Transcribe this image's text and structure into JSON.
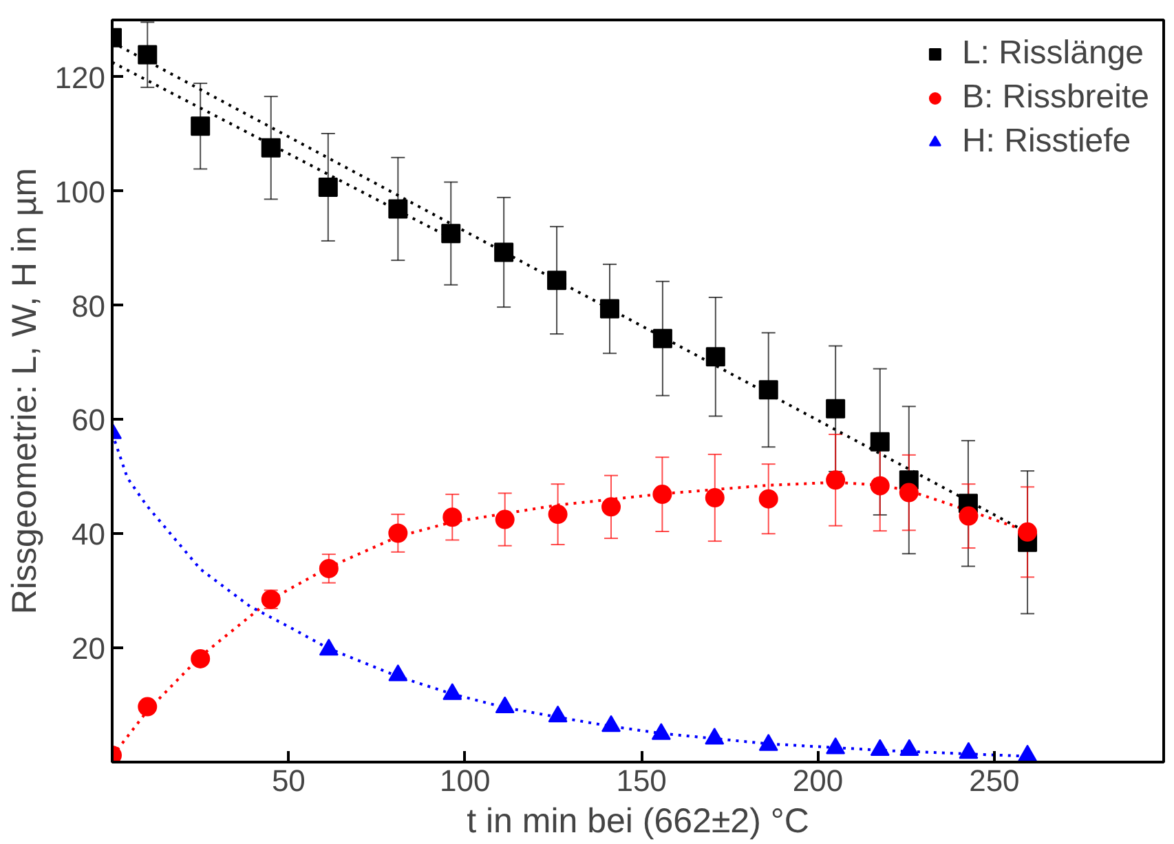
{
  "chart_data": {
    "type": "scatter",
    "xlabel": "t in min bei (662±2) °C",
    "ylabel": "Rissgeometrie: L, W, H in µm",
    "xlim": [
      0,
      298
    ],
    "ylim": [
      0,
      130
    ],
    "xticks": [
      50,
      100,
      150,
      200,
      250
    ],
    "yticks": [
      20,
      40,
      60,
      80,
      100,
      120
    ],
    "grid": false,
    "legend": "top right",
    "series": [
      {
        "name": "L: Risslänge",
        "color": "#000000",
        "marker": "square",
        "x": [
          0,
          10,
          25,
          45,
          61.2,
          81,
          96,
          111,
          126,
          141,
          156,
          171,
          186,
          205,
          217.6,
          225.8,
          242.6,
          259.4
        ],
        "values": [
          126.9,
          123.9,
          111.4,
          107.6,
          100.7,
          96.9,
          92.6,
          89.3,
          84.4,
          79.4,
          74.2,
          71.0,
          65.2,
          61.9,
          56.1,
          49.4,
          45.3,
          38.5
        ],
        "errors": [
          null,
          5.7,
          7.5,
          9,
          9.4,
          9,
          9,
          9.6,
          9.4,
          7.8,
          10,
          10.4,
          10,
          11,
          12.8,
          12.9,
          11,
          12.5
        ]
      },
      {
        "name": "B: Rissbreite",
        "color": "#ff0000",
        "marker": "circle",
        "x": [
          0,
          10,
          25,
          45,
          61.4,
          81,
          96.4,
          111.3,
          126.3,
          141.4,
          155.9,
          170.8,
          186,
          205,
          217.6,
          225.8,
          242.7,
          259.4
        ],
        "values": [
          1.2,
          9.7,
          18.1,
          28.5,
          33.9,
          40.1,
          42.9,
          42.5,
          43.4,
          44.7,
          46.9,
          46.3,
          46.1,
          49.4,
          48.4,
          47.2,
          43.1,
          40.3
        ],
        "errors": [
          null,
          null,
          null,
          1.6,
          2.5,
          3.3,
          4,
          4.6,
          5.3,
          5.5,
          6.5,
          7.6,
          6.1,
          8,
          7.9,
          6.6,
          5.6,
          7.9
        ]
      },
      {
        "name": "H: Risstiefe",
        "color": "#0000ff",
        "marker": "triangle",
        "x": [
          0,
          61.4,
          81,
          96.4,
          111.3,
          126.3,
          141.4,
          155.6,
          170.7,
          186,
          205,
          217.6,
          225.9,
          242.7,
          259.4
        ],
        "values": [
          57.6,
          19.7,
          15.2,
          11.9,
          9.6,
          8.0,
          6.3,
          4.9,
          4.1,
          3.0,
          2.4,
          2.1,
          2.1,
          1.6,
          1.1
        ]
      },
      {
        "type": "line",
        "color": "#000000",
        "line_style": "dotted",
        "x": [
          0,
          260
        ],
        "values": [
          126.1,
          40
        ]
      },
      {
        "type": "line",
        "color": "#000000",
        "line_style": "dotted",
        "x": [
          0,
          96
        ],
        "values": [
          122.6,
          91.8
        ]
      },
      {
        "type": "line",
        "color": "#ff0000",
        "line_style": "dotted",
        "x": [
          0,
          10,
          25,
          45,
          61,
          81,
          96,
          126,
          156,
          186,
          205,
          218,
          226,
          243,
          259
        ],
        "values": [
          1,
          9,
          18.5,
          28.5,
          34,
          39.5,
          42,
          45,
          47,
          48.5,
          49,
          48.5,
          47.5,
          44,
          40.5
        ]
      },
      {
        "type": "line",
        "color": "#0000ff",
        "line_style": "dotted",
        "x": [
          0,
          4.3,
          9.7,
          25,
          39,
          51,
          61,
          81,
          96,
          111,
          126,
          141,
          156,
          186,
          220,
          260
        ],
        "values": [
          57.6,
          49.8,
          45,
          33.8,
          27.3,
          23.4,
          20,
          15,
          12,
          9.6,
          7.9,
          6.3,
          5,
          3.2,
          2,
          1
        ]
      }
    ]
  }
}
